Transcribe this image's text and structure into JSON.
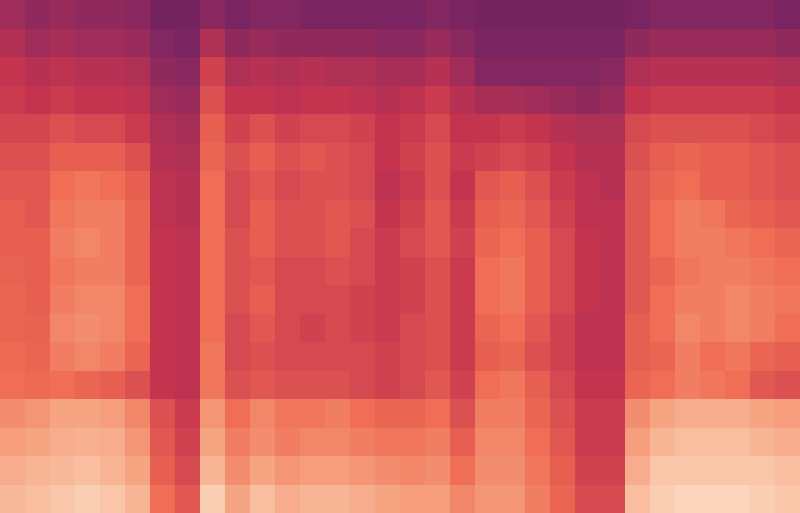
{
  "chart_data": {
    "type": "heatmap",
    "tick_labels": false,
    "color_range": [
      0,
      100
    ],
    "cells": [
      [
        40,
        36,
        38,
        36,
        36,
        34,
        28,
        28,
        34,
        30,
        32,
        32,
        30,
        30,
        30,
        30,
        30,
        32,
        30,
        28,
        28,
        28,
        28,
        28,
        28,
        30,
        32,
        32,
        32,
        32,
        32,
        30
      ],
      [
        45,
        40,
        42,
        40,
        40,
        38,
        32,
        30,
        44,
        36,
        38,
        36,
        36,
        36,
        36,
        34,
        34,
        38,
        34,
        30,
        30,
        30,
        30,
        30,
        30,
        36,
        38,
        38,
        38,
        38,
        38,
        36
      ],
      [
        50,
        46,
        48,
        46,
        46,
        44,
        36,
        34,
        54,
        44,
        46,
        44,
        46,
        44,
        44,
        42,
        42,
        46,
        40,
        32,
        32,
        32,
        32,
        32,
        34,
        44,
        46,
        46,
        46,
        46,
        46,
        44
      ],
      [
        52,
        50,
        52,
        50,
        50,
        48,
        40,
        38,
        58,
        50,
        50,
        48,
        50,
        50,
        48,
        46,
        48,
        52,
        46,
        42,
        42,
        40,
        38,
        36,
        38,
        50,
        52,
        52,
        52,
        52,
        52,
        50
      ],
      [
        55,
        55,
        58,
        56,
        56,
        52,
        44,
        42,
        62,
        54,
        58,
        54,
        56,
        56,
        54,
        50,
        52,
        56,
        50,
        50,
        52,
        50,
        46,
        44,
        44,
        56,
        58,
        58,
        58,
        58,
        56,
        54
      ],
      [
        58,
        58,
        62,
        62,
        62,
        58,
        46,
        44,
        64,
        58,
        62,
        58,
        60,
        58,
        56,
        50,
        54,
        58,
        52,
        54,
        56,
        54,
        50,
        46,
        46,
        58,
        62,
        64,
        62,
        62,
        60,
        58
      ],
      [
        60,
        60,
        66,
        68,
        66,
        62,
        48,
        46,
        66,
        56,
        60,
        56,
        58,
        58,
        56,
        48,
        52,
        58,
        50,
        60,
        62,
        58,
        52,
        48,
        46,
        60,
        64,
        66,
        62,
        62,
        60,
        58
      ],
      [
        62,
        60,
        68,
        70,
        70,
        64,
        48,
        46,
        66,
        56,
        62,
        58,
        58,
        60,
        58,
        50,
        54,
        60,
        52,
        62,
        64,
        60,
        54,
        48,
        48,
        60,
        66,
        70,
        68,
        64,
        62,
        60
      ],
      [
        62,
        62,
        70,
        72,
        70,
        64,
        50,
        48,
        66,
        58,
        62,
        58,
        58,
        60,
        56,
        52,
        56,
        60,
        54,
        64,
        66,
        62,
        56,
        50,
        48,
        60,
        66,
        70,
        70,
        68,
        66,
        64
      ],
      [
        63,
        62,
        68,
        70,
        70,
        64,
        50,
        48,
        66,
        58,
        60,
        56,
        56,
        58,
        56,
        52,
        54,
        58,
        52,
        66,
        68,
        62,
        56,
        50,
        48,
        60,
        64,
        68,
        70,
        70,
        68,
        66
      ],
      [
        64,
        62,
        70,
        72,
        72,
        66,
        50,
        48,
        66,
        58,
        62,
        56,
        56,
        56,
        54,
        52,
        54,
        58,
        52,
        66,
        68,
        62,
        56,
        50,
        48,
        60,
        66,
        70,
        70,
        72,
        70,
        68
      ],
      [
        64,
        63,
        72,
        74,
        72,
        66,
        50,
        48,
        66,
        56,
        60,
        56,
        54,
        56,
        54,
        52,
        56,
        58,
        52,
        64,
        66,
        60,
        54,
        48,
        48,
        62,
        66,
        72,
        70,
        72,
        70,
        66
      ],
      [
        65,
        64,
        70,
        72,
        70,
        64,
        50,
        48,
        68,
        56,
        58,
        56,
        56,
        56,
        56,
        54,
        56,
        58,
        52,
        62,
        64,
        58,
        54,
        48,
        48,
        62,
        64,
        70,
        66,
        68,
        64,
        62
      ],
      [
        66,
        65,
        66,
        64,
        62,
        58,
        50,
        48,
        68,
        58,
        60,
        58,
        58,
        58,
        56,
        54,
        56,
        60,
        54,
        66,
        68,
        62,
        56,
        50,
        50,
        64,
        66,
        70,
        68,
        66,
        60,
        58
      ],
      [
        74,
        76,
        80,
        80,
        78,
        72,
        58,
        52,
        76,
        66,
        72,
        68,
        68,
        70,
        66,
        64,
        64,
        66,
        58,
        70,
        70,
        64,
        58,
        52,
        52,
        74,
        80,
        82,
        82,
        82,
        80,
        78
      ],
      [
        78,
        80,
        82,
        83,
        82,
        76,
        60,
        54,
        80,
        70,
        74,
        70,
        72,
        72,
        70,
        68,
        68,
        70,
        62,
        72,
        72,
        66,
        60,
        52,
        52,
        78,
        84,
        86,
        86,
        86,
        84,
        82
      ],
      [
        82,
        84,
        85,
        86,
        84,
        80,
        62,
        56,
        84,
        74,
        80,
        76,
        78,
        78,
        76,
        74,
        72,
        74,
        66,
        74,
        74,
        68,
        62,
        54,
        54,
        82,
        88,
        88,
        88,
        88,
        88,
        86
      ],
      [
        85,
        86,
        88,
        90,
        88,
        84,
        66,
        60,
        90,
        80,
        86,
        82,
        84,
        84,
        82,
        80,
        78,
        78,
        72,
        76,
        76,
        70,
        64,
        56,
        56,
        86,
        90,
        92,
        92,
        92,
        90,
        88
      ]
    ]
  }
}
